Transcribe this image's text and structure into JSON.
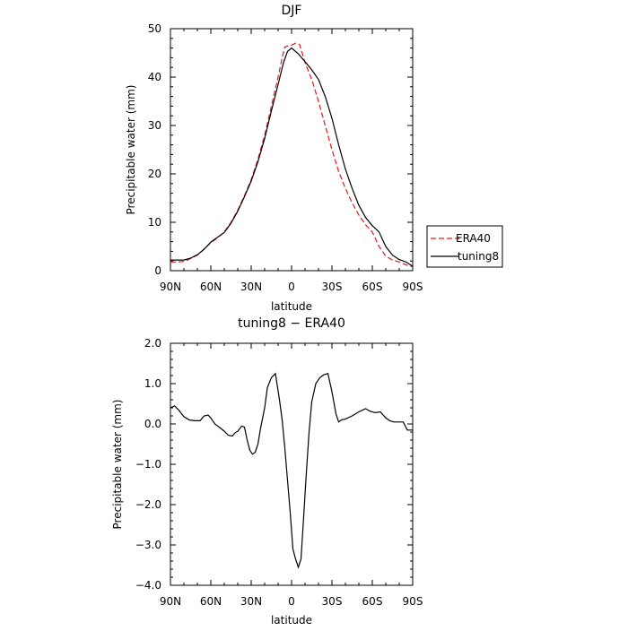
{
  "chart_data": [
    {
      "type": "line",
      "title": "DJF",
      "xlabel": "latitude",
      "ylabel": "Precipitable water (mm)",
      "xlim": [
        90,
        -90
      ],
      "ylim": [
        0,
        50
      ],
      "x_ticks": [
        90,
        60,
        30,
        0,
        -30,
        -60,
        -90
      ],
      "x_tick_labels": [
        "90N",
        "60N",
        "30N",
        "0",
        "30S",
        "60S",
        "90S"
      ],
      "y_ticks": [
        0,
        10,
        20,
        30,
        40,
        50
      ],
      "y_tick_labels": [
        "0",
        "10",
        "20",
        "30",
        "40",
        "50"
      ],
      "legend_position": "right",
      "series": [
        {
          "name": "ERA40",
          "color": "#e01b1b",
          "dash": "dashed",
          "points": [
            [
              90,
              1.8
            ],
            [
              85,
              1.8
            ],
            [
              80,
              1.9
            ],
            [
              75,
              2.5
            ],
            [
              70,
              3.2
            ],
            [
              65,
              4.5
            ],
            [
              60,
              5.8
            ],
            [
              55,
              6.8
            ],
            [
              50,
              8.0
            ],
            [
              45,
              10.0
            ],
            [
              40,
              12.5
            ],
            [
              35,
              15.5
            ],
            [
              30,
              18.8
            ],
            [
              25,
              23.0
            ],
            [
              20,
              28.0
            ],
            [
              15,
              34.0
            ],
            [
              10,
              40.0
            ],
            [
              7,
              44.0
            ],
            [
              5,
              46.2
            ],
            [
              2,
              46.5
            ],
            [
              0,
              46.6
            ],
            [
              -3,
              47.0
            ],
            [
              -6,
              46.7
            ],
            [
              -10,
              43.0
            ],
            [
              -15,
              39.5
            ],
            [
              -20,
              35.0
            ],
            [
              -25,
              30.0
            ],
            [
              -30,
              25.0
            ],
            [
              -35,
              20.5
            ],
            [
              -40,
              17.0
            ],
            [
              -45,
              14.0
            ],
            [
              -50,
              11.5
            ],
            [
              -55,
              9.5
            ],
            [
              -60,
              8.0
            ],
            [
              -65,
              5.0
            ],
            [
              -70,
              3.0
            ],
            [
              -75,
              2.2
            ],
            [
              -80,
              1.8
            ],
            [
              -85,
              1.2
            ],
            [
              -90,
              0.8
            ]
          ]
        },
        {
          "name": "tuning8",
          "color": "#000000",
          "dash": "solid",
          "points": [
            [
              90,
              2.2
            ],
            [
              85,
              2.2
            ],
            [
              80,
              2.2
            ],
            [
              75,
              2.6
            ],
            [
              70,
              3.3
            ],
            [
              65,
              4.4
            ],
            [
              60,
              5.9
            ],
            [
              55,
              6.9
            ],
            [
              50,
              7.9
            ],
            [
              45,
              9.8
            ],
            [
              40,
              12.3
            ],
            [
              35,
              15.3
            ],
            [
              30,
              18.5
            ],
            [
              25,
              22.5
            ],
            [
              20,
              27.3
            ],
            [
              15,
              33.0
            ],
            [
              10,
              38.5
            ],
            [
              6,
              43.0
            ],
            [
              3,
              45.3
            ],
            [
              0,
              46.0
            ],
            [
              -5,
              44.8
            ],
            [
              -10,
              43.2
            ],
            [
              -15,
              41.5
            ],
            [
              -20,
              39.5
            ],
            [
              -25,
              36.0
            ],
            [
              -30,
              31.5
            ],
            [
              -35,
              26.0
            ],
            [
              -40,
              21.0
            ],
            [
              -45,
              17.0
            ],
            [
              -50,
              13.5
            ],
            [
              -55,
              11.0
            ],
            [
              -60,
              9.3
            ],
            [
              -65,
              8.0
            ],
            [
              -70,
              5.0
            ],
            [
              -75,
              3.2
            ],
            [
              -80,
              2.3
            ],
            [
              -85,
              1.8
            ],
            [
              -90,
              0.9
            ]
          ]
        }
      ]
    },
    {
      "type": "line",
      "title": "tuning8 − ERA40",
      "xlabel": "latitude",
      "ylabel": "Precipitable water (mm)",
      "xlim": [
        90,
        -90
      ],
      "ylim": [
        -4.0,
        2.0
      ],
      "x_ticks": [
        90,
        60,
        30,
        0,
        -30,
        -60,
        -90
      ],
      "x_tick_labels": [
        "90N",
        "60N",
        "30N",
        "0",
        "30S",
        "60S",
        "90S"
      ],
      "y_ticks": [
        2.0,
        1.0,
        0.0,
        -1.0,
        -2.0,
        -3.0,
        -4.0
      ],
      "y_tick_labels": [
        "2.0",
        "1.0",
        "0.0",
        "−1.0",
        "−2.0",
        "−3.0",
        "−4.0"
      ],
      "series": [
        {
          "color": "#000000",
          "dash": "solid",
          "points": [
            [
              90,
              0.4
            ],
            [
              87,
              0.45
            ],
            [
              84,
              0.35
            ],
            [
              80,
              0.18
            ],
            [
              76,
              0.1
            ],
            [
              72,
              0.08
            ],
            [
              68,
              0.08
            ],
            [
              65,
              0.2
            ],
            [
              62,
              0.22
            ],
            [
              60,
              0.15
            ],
            [
              57,
              0.0
            ],
            [
              53,
              -0.1
            ],
            [
              50,
              -0.18
            ],
            [
              47,
              -0.28
            ],
            [
              44,
              -0.3
            ],
            [
              42,
              -0.22
            ],
            [
              40,
              -0.18
            ],
            [
              37,
              -0.05
            ],
            [
              35,
              -0.08
            ],
            [
              33,
              -0.4
            ],
            [
              31,
              -0.65
            ],
            [
              29,
              -0.75
            ],
            [
              27,
              -0.7
            ],
            [
              25,
              -0.5
            ],
            [
              23,
              -0.1
            ],
            [
              20,
              0.4
            ],
            [
              18,
              0.9
            ],
            [
              15,
              1.15
            ],
            [
              12,
              1.25
            ],
            [
              9,
              0.6
            ],
            [
              7,
              0.1
            ],
            [
              5,
              -0.6
            ],
            [
              3,
              -1.4
            ],
            [
              1,
              -2.2
            ],
            [
              -1,
              -3.1
            ],
            [
              -3,
              -3.35
            ],
            [
              -5,
              -3.55
            ],
            [
              -7,
              -3.35
            ],
            [
              -9,
              -2.3
            ],
            [
              -11,
              -1.2
            ],
            [
              -13,
              -0.2
            ],
            [
              -15,
              0.55
            ],
            [
              -18,
              1.0
            ],
            [
              -21,
              1.15
            ],
            [
              -24,
              1.22
            ],
            [
              -27,
              1.25
            ],
            [
              -30,
              0.8
            ],
            [
              -33,
              0.25
            ],
            [
              -35,
              0.05
            ],
            [
              -37,
              0.1
            ],
            [
              -40,
              0.12
            ],
            [
              -45,
              0.2
            ],
            [
              -50,
              0.3
            ],
            [
              -55,
              0.38
            ],
            [
              -58,
              0.32
            ],
            [
              -62,
              0.28
            ],
            [
              -66,
              0.3
            ],
            [
              -70,
              0.15
            ],
            [
              -73,
              0.08
            ],
            [
              -76,
              0.05
            ],
            [
              -80,
              0.05
            ],
            [
              -83,
              0.05
            ],
            [
              -86,
              -0.15
            ],
            [
              -90,
              -0.15
            ]
          ]
        }
      ]
    }
  ]
}
